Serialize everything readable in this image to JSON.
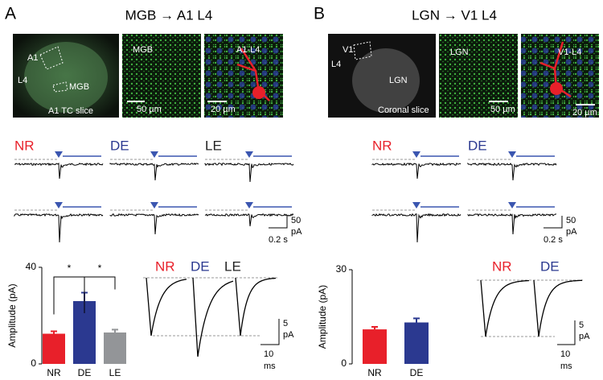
{
  "panels": [
    {
      "letter": "A",
      "title": "MGB → A1 L4",
      "images": [
        {
          "labels": [
            "A1",
            "L4",
            "MGB",
            "A1 TC slice"
          ]
        },
        {
          "labels": [
            "MGB",
            "50 µm"
          ]
        },
        {
          "labels": [
            "A1-L4",
            "20 µm"
          ]
        }
      ],
      "conditions": [
        "NR",
        "DE",
        "LE"
      ],
      "trace_scale": [
        "50",
        "pA",
        "0.2 s"
      ],
      "average_labels": [
        "NR",
        "DE",
        "LE"
      ],
      "average_scale": [
        "5",
        "pA",
        "10",
        "ms"
      ]
    },
    {
      "letter": "B",
      "title": "LGN → V1 L4",
      "images": [
        {
          "labels": [
            "V1",
            "L4",
            "LGN",
            "Coronal slice"
          ]
        },
        {
          "labels": [
            "LGN",
            "50 µm"
          ]
        },
        {
          "labels": [
            "V1-L4",
            "20 µm"
          ]
        }
      ],
      "conditions": [
        "NR",
        "DE"
      ],
      "trace_scale": [
        "50",
        "pA",
        "0.2 s"
      ],
      "average_labels": [
        "NR",
        "DE"
      ],
      "average_scale": [
        "5",
        "pA",
        "10",
        "ms"
      ]
    }
  ],
  "chart_data": [
    {
      "type": "bar",
      "y_label": "Amplitude (pA)",
      "categories": [
        "NR",
        "DE",
        "LE"
      ],
      "values": [
        12.5,
        26,
        13
      ],
      "errors": [
        1,
        3.5,
        1.2
      ],
      "colors": [
        "#e8202a",
        "#2b3990",
        "#939598"
      ],
      "ylim": [
        0,
        40
      ],
      "yticks": [
        0,
        40
      ],
      "annotations": [
        "*",
        "*"
      ]
    },
    {
      "type": "bar",
      "y_label": "Amplitude (pA)",
      "categories": [
        "NR",
        "DE"
      ],
      "values": [
        11,
        13.2
      ],
      "errors": [
        0.8,
        1.3
      ],
      "colors": [
        "#e8202a",
        "#2b3990"
      ],
      "ylim": [
        0,
        30
      ],
      "yticks": [
        0,
        30
      ]
    }
  ]
}
